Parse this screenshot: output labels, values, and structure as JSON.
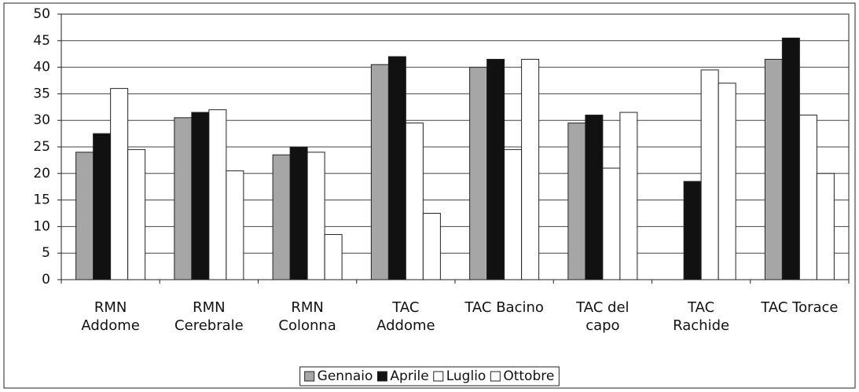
{
  "chart_data": {
    "type": "bar",
    "categories": [
      "RMN\nAddome",
      "RMN\nCerebrale",
      "RMN\nColonna",
      "TAC\nAddome",
      "TAC Bacino",
      "TAC del\ncapo",
      "TAC\nRachide",
      "TAC Torace"
    ],
    "series": [
      {
        "name": "Gennaio",
        "color": "#a6a6a6",
        "values": [
          24,
          30.5,
          23.5,
          40.5,
          40,
          29.5,
          null,
          41.5
        ]
      },
      {
        "name": "Aprile",
        "color": "#111111",
        "values": [
          27.5,
          31.5,
          25,
          42,
          41.5,
          31,
          18.5,
          45.5
        ]
      },
      {
        "name": "Luglio",
        "color": "#ffffff",
        "values": [
          36,
          32,
          24,
          29.5,
          24.5,
          21,
          39.5,
          31
        ]
      },
      {
        "name": "Ottobre",
        "color": "#ffffff",
        "values": [
          24.5,
          20.5,
          8.5,
          12.5,
          41.5,
          31.5,
          37,
          20
        ]
      }
    ],
    "ylim": [
      0,
      50
    ],
    "yticks": [
      0,
      5,
      10,
      15,
      20,
      25,
      30,
      35,
      40,
      45,
      50
    ],
    "grid": true,
    "legend": "bottom"
  }
}
